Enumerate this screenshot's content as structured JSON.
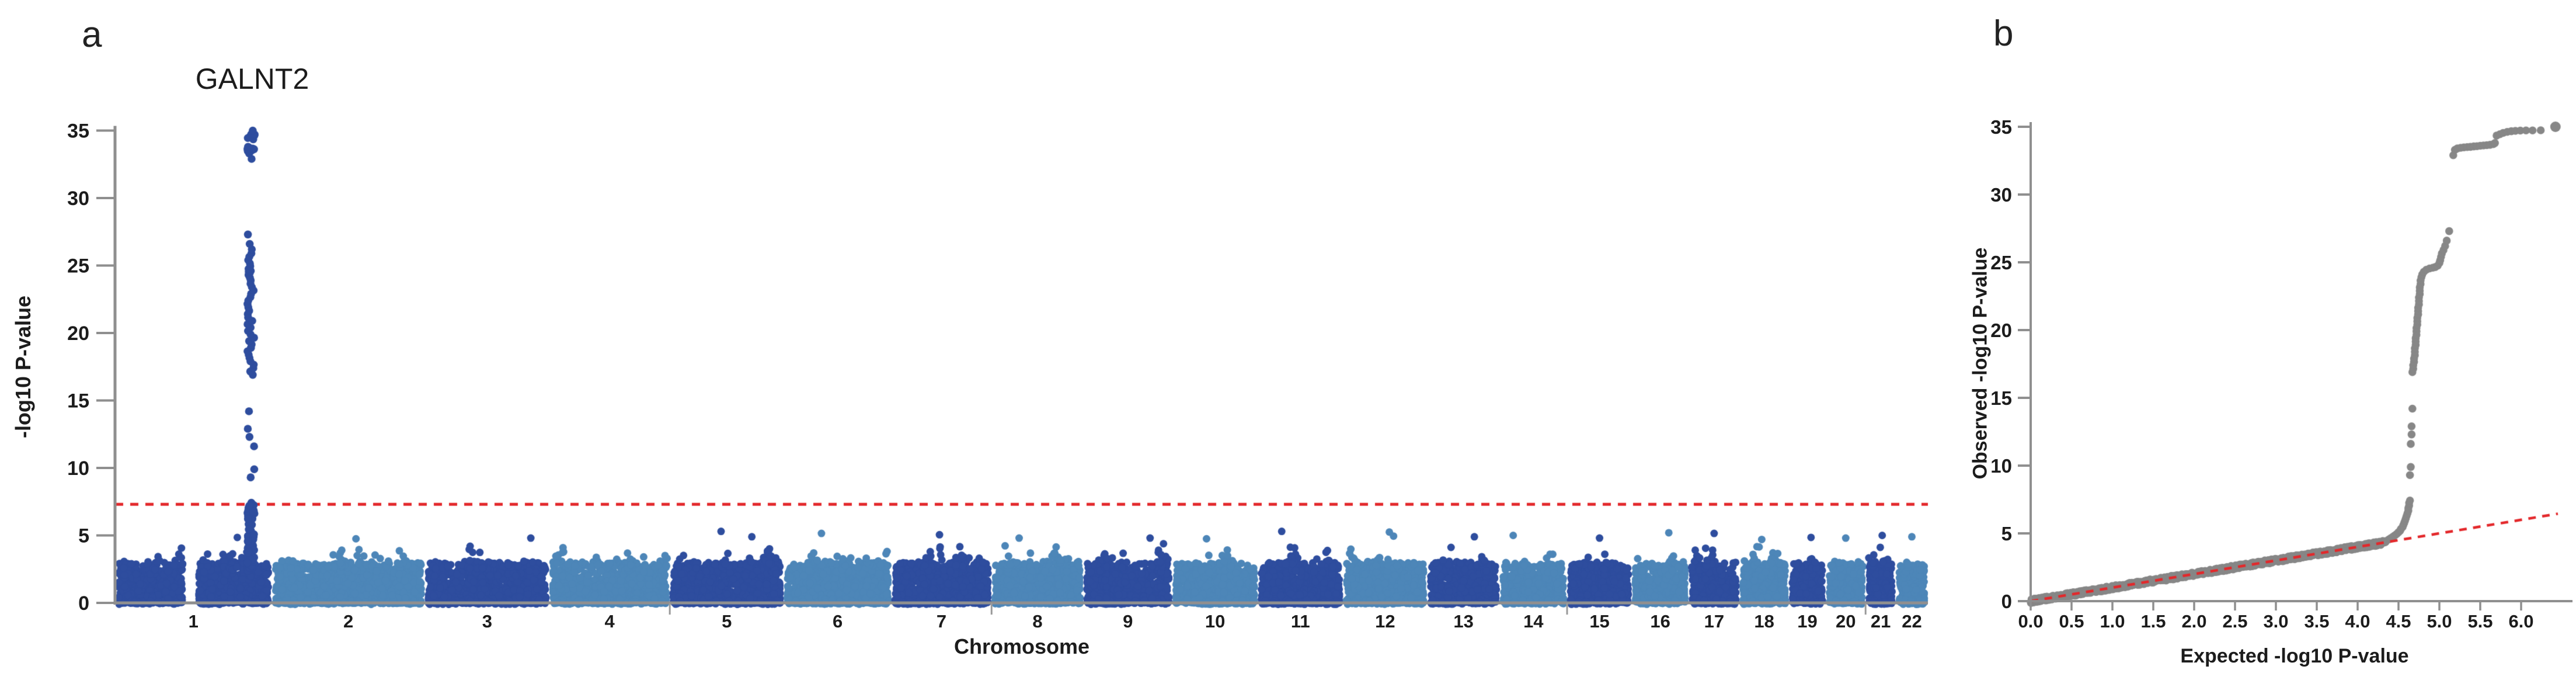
{
  "figure": {
    "panel_a_label": "a",
    "panel_b_label": "b",
    "background_color": "#ffffff",
    "axis_color": "#8f8f8f",
    "text_color": "#1c1c1c"
  },
  "chart_data": [
    {
      "id": "manhattan",
      "panel": "a",
      "type": "scatter",
      "title": "GALNT2",
      "xlabel": "Chromosome",
      "ylabel": "-log10 P-value",
      "ylim": [
        0,
        35
      ],
      "y_ticks": [
        0,
        5,
        10,
        15,
        20,
        25,
        30,
        35
      ],
      "grid": false,
      "point_colors": {
        "odd_chr": "#2E4D9E",
        "even_chr": "#4D86B8"
      },
      "significance_line": {
        "y": 7.3,
        "color": "#E3282B",
        "style": "dashed"
      },
      "chromosomes": [
        {
          "label": "1",
          "length_mb": 249
        },
        {
          "label": "2",
          "length_mb": 243
        },
        {
          "label": "3",
          "length_mb": 198
        },
        {
          "label": "4",
          "length_mb": 191
        },
        {
          "label": "5",
          "length_mb": 181
        },
        {
          "label": "6",
          "length_mb": 171
        },
        {
          "label": "7",
          "length_mb": 159
        },
        {
          "label": "8",
          "length_mb": 146
        },
        {
          "label": "9",
          "length_mb": 141
        },
        {
          "label": "10",
          "length_mb": 136
        },
        {
          "label": "11",
          "length_mb": 135
        },
        {
          "label": "12",
          "length_mb": 134
        },
        {
          "label": "13",
          "length_mb": 115
        },
        {
          "label": "14",
          "length_mb": 107
        },
        {
          "label": "15",
          "length_mb": 103
        },
        {
          "label": "16",
          "length_mb": 90
        },
        {
          "label": "17",
          "length_mb": 81
        },
        {
          "label": "18",
          "length_mb": 78
        },
        {
          "label": "19",
          "length_mb": 59
        },
        {
          "label": "20",
          "length_mb": 63
        },
        {
          "label": "21",
          "length_mb": 48
        },
        {
          "label": "22",
          "length_mb": 51
        }
      ],
      "chr1_centromere_gap_mb": [
        107,
        133
      ],
      "boundary_ticks_after_chr": [
        4,
        7,
        14,
        20
      ],
      "background_noise": {
        "points_per_mb": 6,
        "distribution": "-log10(uniform)",
        "block_max": 3.0,
        "tail_scale": 1.15,
        "seed": 1337
      },
      "noise_outliers": [
        [
          1,
          0.78,
          4.85
        ],
        [
          2,
          0.55,
          4.75
        ],
        [
          3,
          0.85,
          4.8
        ],
        [
          5,
          0.45,
          5.3
        ],
        [
          5,
          0.72,
          4.9
        ],
        [
          6,
          0.35,
          5.15
        ],
        [
          7,
          0.48,
          5.05
        ],
        [
          8,
          0.3,
          4.8
        ],
        [
          9,
          0.75,
          4.8
        ],
        [
          10,
          0.4,
          4.75
        ],
        [
          11,
          0.28,
          5.3
        ],
        [
          12,
          0.55,
          5.25
        ],
        [
          12,
          0.6,
          4.95
        ],
        [
          13,
          0.65,
          4.9
        ],
        [
          14,
          0.2,
          5.0
        ],
        [
          15,
          0.5,
          4.8
        ],
        [
          16,
          0.65,
          5.2
        ],
        [
          17,
          0.5,
          5.15
        ],
        [
          18,
          0.45,
          4.7
        ],
        [
          19,
          0.6,
          4.85
        ],
        [
          20,
          0.5,
          4.8
        ],
        [
          21,
          0.55,
          5.0
        ],
        [
          22,
          0.5,
          4.9
        ]
      ],
      "peak": {
        "gene": "GALNT2",
        "chr": 1,
        "position_mb": 216,
        "top_neg_log10_p": 35.0,
        "values_source": "observed column of qq tail_points",
        "column_fill_range": [
          2.2,
          7.3
        ],
        "column_fill_n": 45
      }
    },
    {
      "id": "qq",
      "panel": "b",
      "type": "scatter",
      "xlabel": "Expected -log10 P-value",
      "ylabel": "Observed -log10 P-value",
      "xlim": [
        0,
        6.6
      ],
      "ylim": [
        0,
        35
      ],
      "x_ticks": [
        "0.0",
        "0.5",
        "1.0",
        "1.5",
        "2.0",
        "2.5",
        "3.0",
        "3.5",
        "4.0",
        "4.5",
        "5.0",
        "5.5",
        "6.0"
      ],
      "y_ticks": [
        0,
        5,
        10,
        15,
        20,
        25,
        30,
        35
      ],
      "grid": false,
      "point_color": "#878787",
      "identity_line": {
        "color": "#E3282B",
        "style": "dashed",
        "x_from": 0,
        "x_to": 6.45
      },
      "null_band": {
        "x_from": 0,
        "x_to": 4.35,
        "n_points": 1100,
        "follows": "y = x"
      },
      "tail_points": [
        [
          4.38,
          4.55
        ],
        [
          4.4,
          4.62
        ],
        [
          4.42,
          4.7
        ],
        [
          4.44,
          4.78
        ],
        [
          4.46,
          4.87
        ],
        [
          4.48,
          4.97
        ],
        [
          4.5,
          5.08
        ],
        [
          4.52,
          5.2
        ],
        [
          4.53,
          5.33
        ],
        [
          4.55,
          5.47
        ],
        [
          4.56,
          5.62
        ],
        [
          4.57,
          5.78
        ],
        [
          4.58,
          5.95
        ],
        [
          4.59,
          6.12
        ],
        [
          4.6,
          6.3
        ],
        [
          4.61,
          6.48
        ],
        [
          4.62,
          6.67
        ],
        [
          4.62,
          6.86
        ],
        [
          4.63,
          7.05
        ],
        [
          4.63,
          7.25
        ],
        [
          4.64,
          7.42
        ],
        [
          4.64,
          9.3
        ],
        [
          4.65,
          9.9
        ],
        [
          4.65,
          11.6
        ],
        [
          4.66,
          12.3
        ],
        [
          4.66,
          12.9
        ],
        [
          4.67,
          14.2
        ],
        [
          4.67,
          16.9
        ],
        [
          4.68,
          17.15
        ],
        [
          4.68,
          17.4
        ],
        [
          4.69,
          17.65
        ],
        [
          4.69,
          17.9
        ],
        [
          4.7,
          18.15
        ],
        [
          4.7,
          18.4
        ],
        [
          4.7,
          18.65
        ],
        [
          4.71,
          18.9
        ],
        [
          4.71,
          19.15
        ],
        [
          4.71,
          19.4
        ],
        [
          4.72,
          19.65
        ],
        [
          4.72,
          19.9
        ],
        [
          4.72,
          20.15
        ],
        [
          4.73,
          20.4
        ],
        [
          4.73,
          20.65
        ],
        [
          4.73,
          20.9
        ],
        [
          4.74,
          21.15
        ],
        [
          4.74,
          21.4
        ],
        [
          4.74,
          21.65
        ],
        [
          4.75,
          21.9
        ],
        [
          4.75,
          22.15
        ],
        [
          4.75,
          22.4
        ],
        [
          4.76,
          22.65
        ],
        [
          4.76,
          22.9
        ],
        [
          4.76,
          23.15
        ],
        [
          4.77,
          23.4
        ],
        [
          4.77,
          23.65
        ],
        [
          4.78,
          23.9
        ],
        [
          4.79,
          24.1
        ],
        [
          4.81,
          24.3
        ],
        [
          4.84,
          24.45
        ],
        [
          4.88,
          24.55
        ],
        [
          4.92,
          24.6
        ],
        [
          4.95,
          24.65
        ],
        [
          4.98,
          24.75
        ],
        [
          5.0,
          24.95
        ],
        [
          5.01,
          25.15
        ],
        [
          5.02,
          25.4
        ],
        [
          5.03,
          25.65
        ],
        [
          5.05,
          25.9
        ],
        [
          5.07,
          26.2
        ],
        [
          5.09,
          26.6
        ],
        [
          5.12,
          27.3
        ],
        [
          5.17,
          32.9
        ],
        [
          5.19,
          33.3
        ],
        [
          5.22,
          33.4
        ],
        [
          5.26,
          33.45
        ],
        [
          5.3,
          33.48
        ],
        [
          5.34,
          33.5
        ],
        [
          5.38,
          33.52
        ],
        [
          5.42,
          33.55
        ],
        [
          5.46,
          33.57
        ],
        [
          5.5,
          33.6
        ],
        [
          5.54,
          33.62
        ],
        [
          5.58,
          33.64
        ],
        [
          5.62,
          33.67
        ],
        [
          5.66,
          33.72
        ],
        [
          5.68,
          33.8
        ],
        [
          5.7,
          34.35
        ],
        [
          5.74,
          34.45
        ],
        [
          5.78,
          34.55
        ],
        [
          5.83,
          34.62
        ],
        [
          5.88,
          34.67
        ],
        [
          5.93,
          34.7
        ],
        [
          5.99,
          34.72
        ],
        [
          6.06,
          34.73
        ],
        [
          6.14,
          34.73
        ],
        [
          6.24,
          34.74
        ],
        [
          6.42,
          35.0
        ]
      ]
    }
  ]
}
